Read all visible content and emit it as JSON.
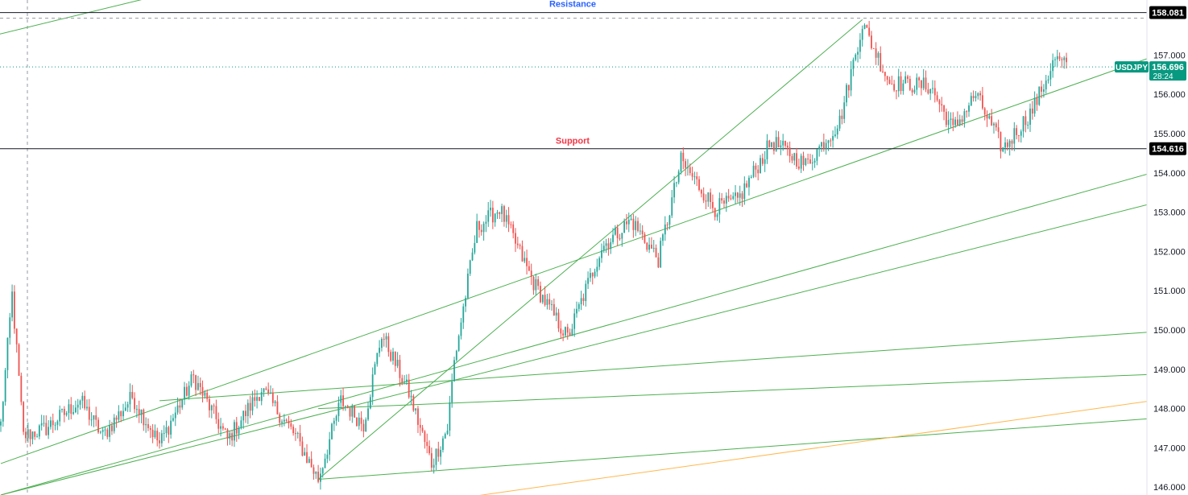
{
  "chart_data": {
    "type": "candlestick",
    "symbol": "USDJPY",
    "last_price": "156.696",
    "countdown": "28:24",
    "ylim": [
      145.8,
      158.4
    ],
    "y_ticks": [
      "146.000",
      "147.000",
      "148.000",
      "149.000",
      "150.000",
      "151.000",
      "152.000",
      "153.000",
      "154.000",
      "155.000",
      "156.000",
      "157.000"
    ],
    "levels": [
      {
        "name": "Resistance",
        "value": 158.081,
        "value_label": "158.081"
      },
      {
        "name": "Support",
        "value": 154.616,
        "value_label": "154.616"
      }
    ],
    "anchors": [
      {
        "i": 0,
        "p": 147.6
      },
      {
        "i": 5,
        "p": 150.9
      },
      {
        "i": 10,
        "p": 147.3
      },
      {
        "i": 20,
        "p": 147.5
      },
      {
        "i": 35,
        "p": 148.2
      },
      {
        "i": 45,
        "p": 147.3
      },
      {
        "i": 58,
        "p": 148.3
      },
      {
        "i": 70,
        "p": 147.1
      },
      {
        "i": 85,
        "p": 148.8
      },
      {
        "i": 100,
        "p": 147.2
      },
      {
        "i": 115,
        "p": 148.5
      },
      {
        "i": 130,
        "p": 147.3
      },
      {
        "i": 140,
        "p": 146.2
      },
      {
        "i": 150,
        "p": 148.2
      },
      {
        "i": 160,
        "p": 147.6
      },
      {
        "i": 168,
        "p": 149.9
      },
      {
        "i": 180,
        "p": 148.4
      },
      {
        "i": 190,
        "p": 146.6
      },
      {
        "i": 197,
        "p": 147.5
      },
      {
        "i": 200,
        "p": 149.2
      },
      {
        "i": 210,
        "p": 152.6
      },
      {
        "i": 220,
        "p": 153.1
      },
      {
        "i": 235,
        "p": 151.2
      },
      {
        "i": 250,
        "p": 149.8
      },
      {
        "i": 265,
        "p": 152.1
      },
      {
        "i": 278,
        "p": 152.8
      },
      {
        "i": 290,
        "p": 151.8
      },
      {
        "i": 300,
        "p": 154.3
      },
      {
        "i": 315,
        "p": 153.1
      },
      {
        "i": 325,
        "p": 153.3
      },
      {
        "i": 340,
        "p": 154.8
      },
      {
        "i": 355,
        "p": 154.2
      },
      {
        "i": 370,
        "p": 155.3
      },
      {
        "i": 380,
        "p": 157.8
      },
      {
        "i": 392,
        "p": 156.3
      },
      {
        "i": 410,
        "p": 156.2
      },
      {
        "i": 420,
        "p": 155.1
      },
      {
        "i": 430,
        "p": 156.0
      },
      {
        "i": 442,
        "p": 154.6
      },
      {
        "i": 455,
        "p": 155.6
      },
      {
        "i": 465,
        "p": 156.9
      },
      {
        "i": 470,
        "p": 156.7
      }
    ],
    "candles_count": 471,
    "trendlines": [
      {
        "color": "#4caf50",
        "from": [
          0,
          145.8
        ],
        "to": [
          520,
          154.2
        ]
      },
      {
        "color": "#4caf50",
        "from": [
          0,
          145.8
        ],
        "to": [
          520,
          153.4
        ]
      },
      {
        "color": "#4caf50",
        "from": [
          70,
          148.2
        ],
        "to": [
          520,
          150.0
        ]
      },
      {
        "color": "#4caf50",
        "from": [
          140,
          148.0
        ],
        "to": [
          520,
          148.9
        ]
      },
      {
        "color": "#4caf50",
        "from": [
          140,
          146.2
        ],
        "to": [
          520,
          147.8
        ]
      },
      {
        "color": "#4caf50",
        "from": [
          140,
          146.2
        ],
        "to": [
          380,
          157.9
        ]
      },
      {
        "color": "#4caf50",
        "from": [
          0,
          146.6
        ],
        "to": [
          520,
          157.2
        ]
      },
      {
        "color": "#4caf50",
        "from": [
          -10,
          157.4
        ],
        "to": [
          90,
          158.8
        ]
      },
      {
        "color": "#ffb74d",
        "from": [
          200,
          145.7
        ],
        "to": [
          520,
          148.3
        ]
      }
    ],
    "colors": {
      "up": "#26a69a",
      "down": "#ef5350",
      "trend": "#4caf50",
      "orange": "#ffb74d",
      "resistance_label": "#2962ff",
      "support_label": "#f23645",
      "symbol_tag": "#089981",
      "level_tag": "#000000"
    }
  }
}
